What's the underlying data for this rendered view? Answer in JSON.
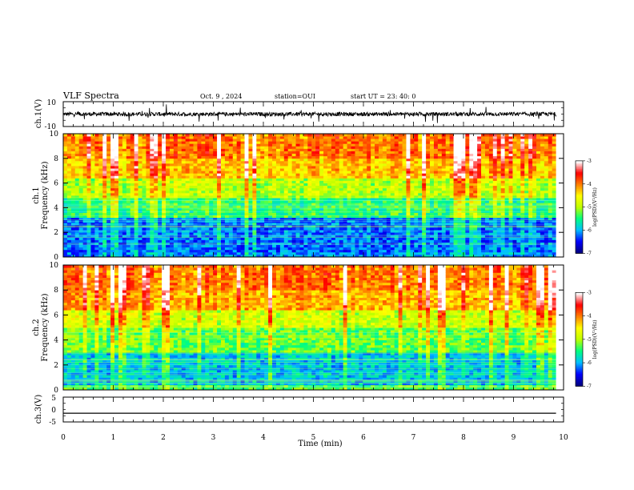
{
  "header": {
    "title": "VLF Spectra",
    "date": "Oct. 9 , 2024",
    "station": "station=OUI",
    "start": "start UT = 23: 40: 0"
  },
  "chart_data": [
    {
      "type": "line",
      "panel": "ch1-waveform",
      "ylabel": "ch.1(V)",
      "ylim": [
        -10,
        10
      ],
      "yticks": [
        "10",
        "-10"
      ],
      "xlim": [
        0,
        10
      ],
      "mean_value": 0,
      "description_color": "#000000"
    },
    {
      "type": "heatmap",
      "panel": "ch1-spectrogram",
      "ylabel_line1": "ch.1",
      "ylabel_line2": "Frequency (kHz)",
      "ylim": [
        0,
        10
      ],
      "yticks": [
        "0",
        "2",
        "4",
        "6",
        "8",
        "10"
      ],
      "xlim": [
        0,
        9.85
      ],
      "colorbar": {
        "label": "log(PSD)(V²/Hz)",
        "range": [
          -7,
          -3
        ],
        "ticks": [
          "-3",
          "-4",
          "-5",
          "-6",
          "-7"
        ],
        "colormap": [
          "#00007f",
          "#0000ff",
          "#00bfff",
          "#00ff80",
          "#bfff00",
          "#ffff00",
          "#ff8000",
          "#ff0000",
          "#ffffff"
        ]
      },
      "bands": [
        {
          "f0": 0,
          "f1": 0.5,
          "level": -6.2
        },
        {
          "f0": 0.5,
          "f1": 3.3,
          "level": -6.3
        },
        {
          "f0": 3.3,
          "f1": 4.8,
          "level": -5.6
        },
        {
          "f0": 4.8,
          "f1": 6.5,
          "level": -5.1
        },
        {
          "f0": 6.5,
          "f1": 8.0,
          "level": -4.5
        },
        {
          "f0": 8.0,
          "f1": 10.0,
          "level": -4.2
        }
      ]
    },
    {
      "type": "heatmap",
      "panel": "ch2-spectrogram",
      "ylabel_line1": "ch.2",
      "ylabel_line2": "Frequency (kHz)",
      "ylim": [
        0,
        10
      ],
      "yticks": [
        "0",
        "2",
        "4",
        "6",
        "8",
        "10"
      ],
      "xlim": [
        0,
        9.85
      ],
      "colorbar": {
        "label": "log(PSD)(V²/Hz)",
        "range": [
          -7,
          -3
        ],
        "ticks": [
          "-3",
          "-4",
          "-5",
          "-6",
          "-7"
        ],
        "colormap": [
          "#00007f",
          "#0000ff",
          "#00bfff",
          "#00ff80",
          "#bfff00",
          "#ffff00",
          "#ff8000",
          "#ff0000",
          "#ffffff"
        ]
      },
      "bands": [
        {
          "f0": 0,
          "f1": 0.5,
          "level": -5.4
        },
        {
          "f0": 0.5,
          "f1": 3.0,
          "level": -6.0
        },
        {
          "f0": 3.0,
          "f1": 5.0,
          "level": -5.4
        },
        {
          "f0": 5.0,
          "f1": 6.5,
          "level": -5.0
        },
        {
          "f0": 6.5,
          "f1": 8.0,
          "level": -4.4
        },
        {
          "f0": 8.0,
          "f1": 10.0,
          "level": -4.2
        }
      ]
    },
    {
      "type": "line",
      "panel": "ch3-waveform",
      "ylabel": "ch.3(V)",
      "ylim": [
        -5,
        5
      ],
      "yticks": [
        "5",
        "0",
        "-5"
      ],
      "xlim": [
        0,
        10
      ],
      "value": -1.5
    }
  ],
  "xaxis": {
    "label": "Time (min)",
    "range": [
      0,
      10
    ],
    "ticks": [
      "0",
      "1",
      "2",
      "3",
      "4",
      "5",
      "6",
      "7",
      "8",
      "9",
      "10"
    ]
  },
  "colors": {
    "line": "#000000",
    "background": "#ffffff"
  }
}
